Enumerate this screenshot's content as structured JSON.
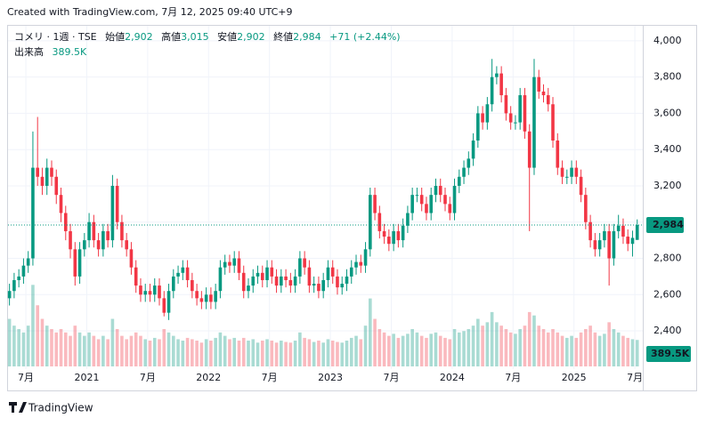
{
  "header": "Created with TradingView.com, 7月 12, 2025 09:40 UTC+9",
  "footer": "TradingView",
  "chart_data": {
    "type": "candlestick",
    "legend": {
      "symbol": "コメリ · 1週 · TSE",
      "open_label": "始値",
      "open": "2,902",
      "high_label": "高値",
      "high": "3,015",
      "low_label": "安値",
      "low": "2,902",
      "close_label": "終値",
      "close": "2,984",
      "change": "+71 (+2.44%)",
      "volume_label": "出来高",
      "volume": "389.5K"
    },
    "last_price_label": "2,984",
    "last_volume_label": "389.5K",
    "up_color": "#089981",
    "down_color": "#f23645",
    "grid": true,
    "xlim": [
      -1,
      270
    ],
    "ylim": [
      2204,
      4078
    ],
    "volume_lim": [
      0,
      5000000
    ],
    "yticks": [
      {
        "value": 2400,
        "label": "2,400"
      },
      {
        "value": 2600,
        "label": "2,600"
      },
      {
        "value": 2800,
        "label": "2,800"
      },
      {
        "value": 3000,
        "label": "3,000"
      },
      {
        "value": 3200,
        "label": "3,200"
      },
      {
        "value": 3400,
        "label": "3,400"
      },
      {
        "value": 3600,
        "label": "3,600"
      },
      {
        "value": 3800,
        "label": "3,800"
      },
      {
        "value": 4000,
        "label": "4,000"
      }
    ],
    "xticks": [
      {
        "value": 7,
        "label": "7月"
      },
      {
        "value": 33,
        "label": "2021"
      },
      {
        "value": 59,
        "label": "7月"
      },
      {
        "value": 85,
        "label": "2022"
      },
      {
        "value": 111,
        "label": "7月"
      },
      {
        "value": 137,
        "label": "2023"
      },
      {
        "value": 163,
        "label": "7月"
      },
      {
        "value": 189,
        "label": "2024"
      },
      {
        "value": 215,
        "label": "7月"
      },
      {
        "value": 241,
        "label": "2025"
      },
      {
        "value": 267,
        "label": "7月"
      }
    ],
    "x": [
      0,
      2,
      4,
      6,
      8,
      10,
      12,
      14,
      16,
      18,
      20,
      22,
      24,
      26,
      28,
      30,
      32,
      34,
      36,
      38,
      40,
      42,
      44,
      46,
      48,
      50,
      52,
      54,
      56,
      58,
      60,
      62,
      64,
      66,
      68,
      70,
      72,
      74,
      76,
      78,
      80,
      82,
      84,
      86,
      88,
      90,
      92,
      94,
      96,
      98,
      100,
      102,
      104,
      106,
      108,
      110,
      112,
      114,
      116,
      118,
      120,
      122,
      124,
      126,
      128,
      130,
      132,
      134,
      136,
      138,
      140,
      142,
      144,
      146,
      148,
      150,
      152,
      154,
      156,
      158,
      160,
      162,
      164,
      166,
      168,
      170,
      172,
      174,
      176,
      178,
      180,
      182,
      184,
      186,
      188,
      190,
      192,
      194,
      196,
      198,
      200,
      202,
      204,
      206,
      208,
      210,
      212,
      214,
      216,
      218,
      220,
      222,
      224,
      226,
      228,
      230,
      232,
      234,
      236,
      238,
      240,
      242,
      244,
      246,
      248,
      250,
      252,
      254,
      256,
      258,
      260,
      262,
      264,
      266,
      268
    ],
    "open": [
      2580,
      2620,
      2680,
      2700,
      2760,
      2800,
      3300,
      3250,
      3200,
      3300,
      3250,
      3150,
      3050,
      2950,
      2850,
      2700,
      2850,
      2900,
      3000,
      2900,
      2850,
      2950,
      2900,
      3200,
      3000,
      2900,
      2850,
      2750,
      2650,
      2600,
      2620,
      2600,
      2650,
      2580,
      2500,
      2620,
      2700,
      2720,
      2750,
      2680,
      2620,
      2580,
      2560,
      2600,
      2560,
      2620,
      2750,
      2780,
      2760,
      2800,
      2720,
      2620,
      2650,
      2700,
      2720,
      2680,
      2750,
      2700,
      2650,
      2700,
      2680,
      2650,
      2700,
      2800,
      2750,
      2650,
      2660,
      2620,
      2680,
      2750,
      2700,
      2640,
      2660,
      2700,
      2750,
      2780,
      2760,
      2850,
      3150,
      3050,
      2950,
      2920,
      2880,
      2950,
      2900,
      2980,
      3050,
      3150,
      3150,
      3100,
      3050,
      3150,
      3200,
      3150,
      3100,
      3050,
      3200,
      3250,
      3300,
      3350,
      3450,
      3600,
      3550,
      3650,
      3800,
      3820,
      3700,
      3600,
      3550,
      3550,
      3700,
      3500,
      3300,
      3800,
      3720,
      3700,
      3650,
      3450,
      3300,
      3250,
      3250,
      3300,
      3250,
      3150,
      3000,
      2900,
      2850,
      2900,
      2950,
      2800,
      2950,
      2980,
      2920,
      2880,
      2902
    ],
    "high": [
      2660,
      2720,
      2740,
      2800,
      2840,
      3500,
      3580,
      3300,
      3350,
      3340,
      3290,
      3190,
      3090,
      2990,
      2890,
      2890,
      2940,
      3050,
      3040,
      2940,
      2990,
      2990,
      3260,
      3240,
      3040,
      2940,
      2890,
      2790,
      2690,
      2660,
      2660,
      2690,
      2690,
      2620,
      2660,
      2740,
      2760,
      2790,
      2790,
      2720,
      2660,
      2620,
      2640,
      2640,
      2660,
      2790,
      2820,
      2820,
      2840,
      2840,
      2760,
      2690,
      2740,
      2760,
      2760,
      2790,
      2790,
      2740,
      2740,
      2740,
      2720,
      2740,
      2840,
      2840,
      2790,
      2700,
      2700,
      2720,
      2790,
      2790,
      2740,
      2700,
      2740,
      2790,
      2820,
      2820,
      2890,
      3190,
      3190,
      3090,
      2990,
      2960,
      2990,
      2990,
      3020,
      3090,
      3190,
      3190,
      3190,
      3140,
      3190,
      3240,
      3240,
      3190,
      3140,
      3240,
      3290,
      3340,
      3390,
      3490,
      3640,
      3640,
      3690,
      3900,
      3860,
      3860,
      3740,
      3640,
      3590,
      3740,
      3740,
      3540,
      3900,
      3840,
      3760,
      3740,
      3690,
      3490,
      3340,
      3290,
      3340,
      3340,
      3290,
      3190,
      3040,
      2940,
      2940,
      2990,
      2990,
      2990,
      3040,
      3020,
      2960,
      2953,
      3015
    ],
    "low": [
      2540,
      2580,
      2640,
      2660,
      2720,
      2760,
      3200,
      3150,
      3150,
      3200,
      3100,
      3000,
      2900,
      2800,
      2650,
      2660,
      2810,
      2860,
      2860,
      2810,
      2810,
      2860,
      2860,
      2960,
      2860,
      2810,
      2710,
      2610,
      2560,
      2560,
      2560,
      2560,
      2540,
      2480,
      2460,
      2580,
      2660,
      2680,
      2640,
      2580,
      2540,
      2520,
      2520,
      2520,
      2520,
      2580,
      2710,
      2720,
      2720,
      2680,
      2580,
      2580,
      2610,
      2660,
      2640,
      2640,
      2660,
      2610,
      2610,
      2640,
      2610,
      2610,
      2660,
      2710,
      2610,
      2610,
      2580,
      2580,
      2640,
      2660,
      2600,
      2600,
      2620,
      2660,
      2710,
      2720,
      2720,
      2810,
      3010,
      2910,
      2880,
      2840,
      2840,
      2860,
      2860,
      2940,
      3010,
      3110,
      3060,
      3010,
      3010,
      3110,
      3110,
      3060,
      3010,
      3010,
      3160,
      3210,
      3260,
      3310,
      3410,
      3510,
      3510,
      3610,
      3760,
      3660,
      3560,
      3510,
      3510,
      3510,
      3460,
      2950,
      3260,
      3680,
      3660,
      3610,
      3410,
      3260,
      3210,
      3210,
      3210,
      3210,
      3110,
      2960,
      2860,
      2810,
      2810,
      2860,
      2650,
      2760,
      2910,
      2880,
      2840,
      2810,
      2902
    ],
    "close": [
      2620,
      2680,
      2700,
      2760,
      2800,
      3300,
      3250,
      3200,
      3300,
      3250,
      3150,
      3050,
      2950,
      2850,
      2700,
      2850,
      2900,
      3000,
      2900,
      2850,
      2950,
      2900,
      3200,
      3000,
      2900,
      2850,
      2750,
      2650,
      2600,
      2620,
      2600,
      2650,
      2580,
      2500,
      2620,
      2700,
      2720,
      2750,
      2680,
      2620,
      2580,
      2560,
      2600,
      2560,
      2620,
      2750,
      2780,
      2760,
      2800,
      2720,
      2620,
      2650,
      2700,
      2720,
      2680,
      2750,
      2700,
      2650,
      2700,
      2680,
      2650,
      2700,
      2800,
      2750,
      2650,
      2660,
      2620,
      2680,
      2750,
      2700,
      2640,
      2660,
      2700,
      2750,
      2780,
      2760,
      2850,
      3150,
      3050,
      2950,
      2920,
      2880,
      2950,
      2900,
      2980,
      3050,
      3150,
      3150,
      3100,
      3050,
      3150,
      3200,
      3150,
      3100,
      3050,
      3200,
      3250,
      3300,
      3350,
      3450,
      3600,
      3550,
      3650,
      3800,
      3820,
      3700,
      3600,
      3550,
      3550,
      3700,
      3500,
      3300,
      3800,
      3720,
      3700,
      3650,
      3450,
      3300,
      3250,
      3250,
      3300,
      3250,
      3150,
      3000,
      2900,
      2850,
      2900,
      2950,
      2800,
      2950,
      2980,
      2920,
      2880,
      2913,
      2984
    ],
    "volume": [
      700000,
      600000,
      550000,
      500000,
      600000,
      1200000,
      900000,
      700000,
      600000,
      550000,
      500000,
      550000,
      500000,
      450000,
      600000,
      500000,
      450000,
      500000,
      450000,
      400000,
      450000,
      400000,
      700000,
      550000,
      450000,
      400000,
      450000,
      500000,
      450000,
      400000,
      380000,
      420000,
      400000,
      550000,
      500000,
      450000,
      400000,
      380000,
      420000,
      400000,
      380000,
      350000,
      400000,
      380000,
      420000,
      500000,
      450000,
      400000,
      420000,
      380000,
      420000,
      380000,
      400000,
      350000,
      380000,
      400000,
      380000,
      350000,
      380000,
      360000,
      350000,
      380000,
      500000,
      420000,
      400000,
      360000,
      380000,
      350000,
      400000,
      380000,
      360000,
      350000,
      380000,
      420000,
      450000,
      400000,
      600000,
      1000000,
      700000,
      550000,
      500000,
      450000,
      480000,
      420000,
      450000,
      480000,
      550000,
      500000,
      450000,
      420000,
      480000,
      500000,
      450000,
      420000,
      400000,
      550000,
      500000,
      520000,
      550000,
      600000,
      700000,
      600000,
      650000,
      800000,
      650000,
      600000,
      550000,
      500000,
      480000,
      550000,
      600000,
      800000,
      750000,
      600000,
      550000,
      500000,
      550000,
      500000,
      450000,
      420000,
      450000,
      420000,
      500000,
      550000,
      600000,
      500000,
      450000,
      480000,
      650000,
      550000,
      500000,
      450000,
      420000,
      400000,
      389500
    ]
  }
}
